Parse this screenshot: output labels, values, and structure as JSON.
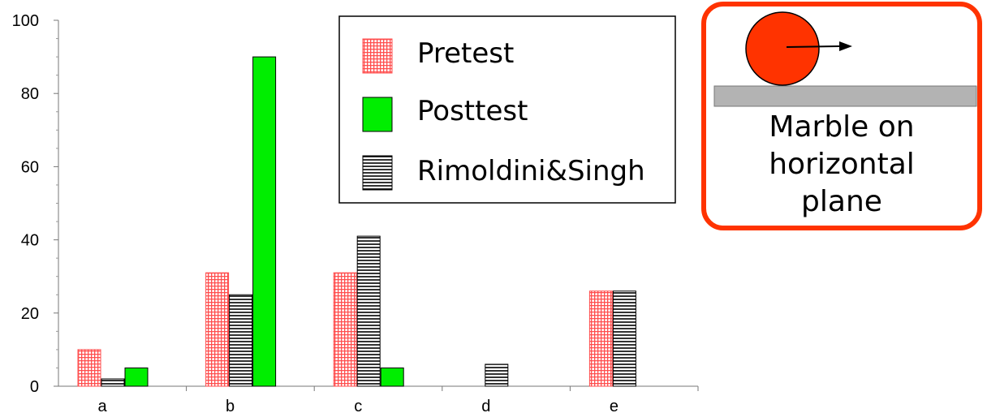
{
  "chart_data": {
    "type": "bar",
    "categories": [
      "a",
      "b",
      "c",
      "d",
      "e"
    ],
    "series": [
      {
        "name": "Pretest",
        "values": [
          10,
          31,
          31,
          0,
          26
        ],
        "color": "#ff4d4d",
        "pattern": "grid"
      },
      {
        "name": "Rimoldini&Singh",
        "values": [
          2,
          25,
          41,
          6,
          26
        ],
        "color": "#000000",
        "pattern": "horizontal-lines"
      },
      {
        "name": "Posttest",
        "values": [
          5,
          90,
          5,
          0,
          0
        ],
        "color": "#00ee00",
        "pattern": "solid"
      }
    ],
    "legend_order": [
      "Pretest",
      "Posttest",
      "Rimoldini&Singh"
    ],
    "legend_position": "top-right",
    "ylim": [
      0,
      100
    ],
    "yticks": [
      0,
      20,
      40,
      60,
      80,
      100
    ],
    "grid": false,
    "title": "",
    "xlabel": "",
    "ylabel": ""
  },
  "callout": {
    "lines": [
      "Marble on",
      "horizontal",
      "plane"
    ],
    "border_color": "#ff3300",
    "marble_color": "#ff3300",
    "plane_color": "#b3b3b3"
  }
}
